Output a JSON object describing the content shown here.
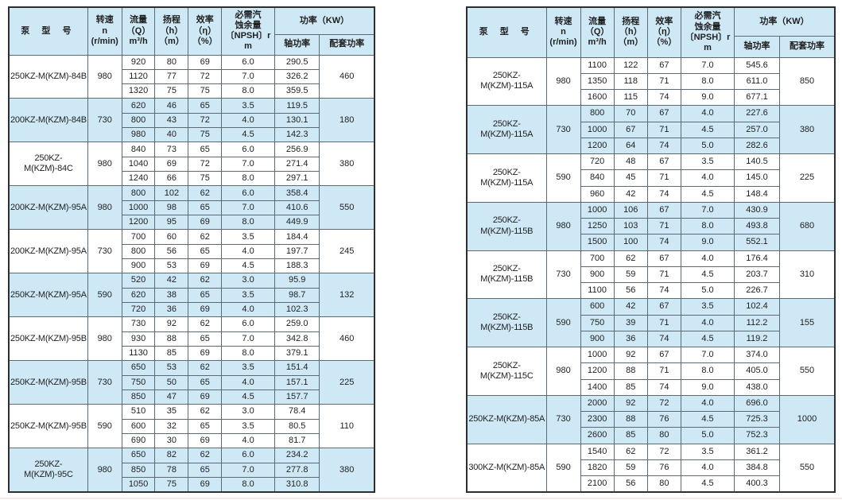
{
  "colors": {
    "highlight_blue": "#cfe8f5",
    "outer_border": "#2e2e2e",
    "inner_border": "#5c6a74",
    "text": "#1f1f1f"
  },
  "table_headers": {
    "model": "泵 型 号",
    "speed": "转速\nn\n(r/min)",
    "flow": "流量\n（Q）\nm³/h",
    "head": "扬程\n（h）\n（m）",
    "efficiency": "效率\n（η）\n（%）",
    "npsh": "必需汽\n蚀余量\n〔NPSH〕r\nm",
    "power_group": "功率（KW）",
    "shaft_power": "轴功率",
    "matched_power": "配套功率"
  },
  "left_table": {
    "groups": [
      {
        "model": "250KZ-M(KZM)-84B",
        "speed": "980",
        "matched_power": "460",
        "rows": [
          [
            "920",
            "80",
            "69",
            "6.0",
            "290.5"
          ],
          [
            "1120",
            "77",
            "72",
            "7.0",
            "326.2"
          ],
          [
            "1320",
            "75",
            "75",
            "8.0",
            "359.5"
          ]
        ]
      },
      {
        "model": "200KZ-M(KZM)-84B",
        "speed": "730",
        "matched_power": "180",
        "rows": [
          [
            "620",
            "46",
            "65",
            "3.5",
            "119.5"
          ],
          [
            "800",
            "43",
            "72",
            "4.0",
            "130.1"
          ],
          [
            "980",
            "40",
            "75",
            "4.5",
            "142.3"
          ]
        ]
      },
      {
        "model": "250KZ-M(KZM)-84C",
        "speed": "980",
        "matched_power": "380",
        "rows": [
          [
            "840",
            "73",
            "65",
            "6.0",
            "256.9"
          ],
          [
            "1040",
            "69",
            "72",
            "7.0",
            "271.4"
          ],
          [
            "1240",
            "66",
            "75",
            "8.0",
            "297.1"
          ]
        ]
      },
      {
        "model": "200KZ-M(KZM)-95A",
        "speed": "980",
        "matched_power": "550",
        "rows": [
          [
            "800",
            "102",
            "62",
            "6.0",
            "358.4"
          ],
          [
            "1000",
            "98",
            "65",
            "7.0",
            "410.6"
          ],
          [
            "1200",
            "95",
            "69",
            "8.0",
            "449.9"
          ]
        ]
      },
      {
        "model": "200KZ-M(KZM)-95A",
        "speed": "730",
        "matched_power": "245",
        "rows": [
          [
            "700",
            "60",
            "62",
            "3.5",
            "184.4"
          ],
          [
            "800",
            "56",
            "65",
            "4.0",
            "197.7"
          ],
          [
            "900",
            "53",
            "69",
            "4.5",
            "188.3"
          ]
        ]
      },
      {
        "model": "250KZ-M(KZM)-95A",
        "speed": "590",
        "matched_power": "132",
        "rows": [
          [
            "520",
            "42",
            "62",
            "3.0",
            "95.9"
          ],
          [
            "620",
            "38",
            "65",
            "3.5",
            "98.7"
          ],
          [
            "720",
            "36",
            "69",
            "4.0",
            "102.3"
          ]
        ]
      },
      {
        "model": "250KZ-M(KZM)-95B",
        "speed": "980",
        "matched_power": "460",
        "rows": [
          [
            "730",
            "92",
            "62",
            "6.0",
            "259.0"
          ],
          [
            "930",
            "88",
            "65",
            "7.0",
            "342.8"
          ],
          [
            "1130",
            "85",
            "69",
            "8.0",
            "379.1"
          ]
        ]
      },
      {
        "model": "250KZ-M(KZM)-95B",
        "speed": "730",
        "matched_power": "225",
        "rows": [
          [
            "650",
            "53",
            "62",
            "3.5",
            "151.4"
          ],
          [
            "750",
            "50",
            "65",
            "4.0",
            "157.1"
          ],
          [
            "850",
            "47",
            "69",
            "4.5",
            "157.7"
          ]
        ]
      },
      {
        "model": "250KZ-M(KZM)-95B",
        "speed": "590",
        "matched_power": "110",
        "rows": [
          [
            "510",
            "35",
            "62",
            "3.0",
            "78.4"
          ],
          [
            "600",
            "32",
            "65",
            "3.5",
            "80.5"
          ],
          [
            "690",
            "30",
            "69",
            "4.0",
            "81.7"
          ]
        ]
      },
      {
        "model": "250KZ-M(KZM)-95C",
        "speed": "980",
        "matched_power": "380",
        "rows": [
          [
            "650",
            "82",
            "62",
            "6.0",
            "234.2"
          ],
          [
            "850",
            "78",
            "65",
            "7.0",
            "277.8"
          ],
          [
            "1050",
            "75",
            "69",
            "8.0",
            "310.8"
          ]
        ]
      }
    ]
  },
  "right_table": {
    "groups": [
      {
        "model": "250KZ-M(KZM)-115A",
        "speed": "980",
        "matched_power": "850",
        "rows": [
          [
            "1100",
            "122",
            "67",
            "7.0",
            "545.6"
          ],
          [
            "1350",
            "118",
            "71",
            "8.0",
            "611.0"
          ],
          [
            "1600",
            "115",
            "74",
            "9.0",
            "677.1"
          ]
        ]
      },
      {
        "model": "250KZ-M(KZM)-115A",
        "speed": "730",
        "matched_power": "380",
        "rows": [
          [
            "800",
            "70",
            "67",
            "4.0",
            "227.6"
          ],
          [
            "1000",
            "67",
            "71",
            "4.5",
            "257.0"
          ],
          [
            "1200",
            "64",
            "74",
            "5.0",
            "282.6"
          ]
        ]
      },
      {
        "model": "250KZ-M(KZM)-115A",
        "speed": "590",
        "matched_power": "225",
        "rows": [
          [
            "720",
            "48",
            "67",
            "3.5",
            "140.5"
          ],
          [
            "840",
            "45",
            "71",
            "4.0",
            "145.0"
          ],
          [
            "960",
            "42",
            "74",
            "4.5",
            "148.4"
          ]
        ]
      },
      {
        "model": "250KZ-M(KZM)-115B",
        "speed": "980",
        "matched_power": "680",
        "rows": [
          [
            "1000",
            "106",
            "67",
            "7.0",
            "430.9"
          ],
          [
            "1250",
            "103",
            "71",
            "8.0",
            "493.8"
          ],
          [
            "1500",
            "100",
            "74",
            "9.0",
            "552.1"
          ]
        ]
      },
      {
        "model": "250KZ-M(KZM)-115B",
        "speed": "730",
        "matched_power": "310",
        "rows": [
          [
            "700",
            "62",
            "67",
            "4.0",
            "176.4"
          ],
          [
            "900",
            "59",
            "71",
            "4.5",
            "203.7"
          ],
          [
            "1100",
            "56",
            "74",
            "5.0",
            "226.7"
          ]
        ]
      },
      {
        "model": "250KZ-M(KZM)-115B",
        "speed": "590",
        "matched_power": "155",
        "rows": [
          [
            "600",
            "42",
            "67",
            "3.5",
            "102.4"
          ],
          [
            "750",
            "39",
            "71",
            "4.0",
            "112.2"
          ],
          [
            "900",
            "36",
            "74",
            "4.5",
            "119.2"
          ]
        ]
      },
      {
        "model": "250KZ-M(KZM)-115C",
        "speed": "980",
        "matched_power": "550",
        "rows": [
          [
            "1000",
            "92",
            "67",
            "7.0",
            "374.0"
          ],
          [
            "1200",
            "88",
            "71",
            "8.0",
            "405.0"
          ],
          [
            "1400",
            "85",
            "74",
            "9.0",
            "438.0"
          ]
        ]
      },
      {
        "model": "250KZ-M(KZM)-85A",
        "speed": "730",
        "matched_power": "1000",
        "rows": [
          [
            "2000",
            "92",
            "72",
            "4.0",
            "696.0"
          ],
          [
            "2300",
            "88",
            "76",
            "4.5",
            "725.3"
          ],
          [
            "2600",
            "85",
            "80",
            "5.0",
            "752.3"
          ]
        ]
      },
      {
        "model": "300KZ-M(KZM)-85A",
        "speed": "590",
        "matched_power": "550",
        "rows": [
          [
            "1540",
            "62",
            "72",
            "3.5",
            "361.2"
          ],
          [
            "1820",
            "59",
            "76",
            "4.0",
            "384.8"
          ],
          [
            "2100",
            "56",
            "80",
            "4.5",
            "400.3"
          ]
        ]
      }
    ]
  }
}
